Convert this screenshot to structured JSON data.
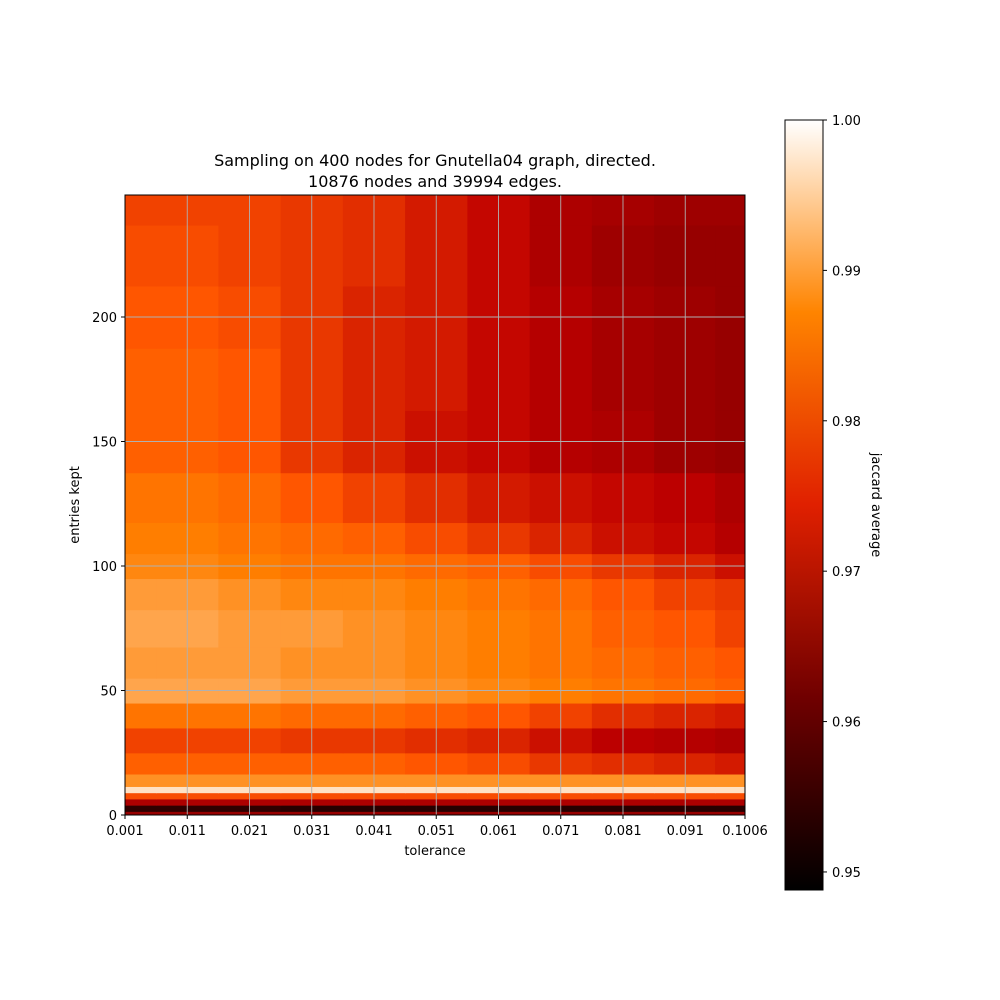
{
  "chart_data": {
    "type": "heatmap",
    "title": "Sampling on 400 nodes for Gnutella04 graph, directed.",
    "subtitle": "10876 nodes and 39994 edges.",
    "xlabel": "tolerance",
    "ylabel": "entries kept",
    "xlim": [
      0.001,
      0.1006
    ],
    "ylim": [
      0,
      249
    ],
    "x_ticks": [
      "0.001",
      "0.011",
      "0.021",
      "0.031",
      "0.041",
      "0.051",
      "0.061",
      "0.071",
      "0.081",
      "0.091",
      "0.1006"
    ],
    "y_ticks": [
      "0",
      "50",
      "100",
      "150",
      "200"
    ],
    "grid": true,
    "colormap": "gist_heat",
    "colorbar": {
      "label": "jaccard average",
      "range": [
        0.9488,
        1.0
      ],
      "ticks": [
        "0.95",
        "0.96",
        "0.97",
        "0.98",
        "0.99",
        "1.00"
      ]
    },
    "x": [
      0.001,
      0.011,
      0.021,
      0.031,
      0.041,
      0.051,
      0.061,
      0.071,
      0.081,
      0.091,
      0.1006
    ],
    "y": [
      0,
      3,
      5,
      8,
      10,
      13,
      20,
      30,
      40,
      50,
      60,
      75,
      90,
      100,
      110,
      125,
      150,
      175,
      200,
      225,
      249
    ],
    "z": [
      [
        0.969,
        0.969,
        0.969,
        0.969,
        0.969,
        0.969,
        0.969,
        0.969,
        0.969,
        0.969,
        0.969
      ],
      [
        0.955,
        0.955,
        0.955,
        0.954,
        0.954,
        0.954,
        0.954,
        0.954,
        0.954,
        0.954,
        0.954
      ],
      [
        0.972,
        0.972,
        0.972,
        0.972,
        0.972,
        0.972,
        0.972,
        0.972,
        0.972,
        0.972,
        0.972
      ],
      [
        0.982,
        0.982,
        0.982,
        0.982,
        0.982,
        0.982,
        0.982,
        0.982,
        0.982,
        0.982,
        0.982
      ],
      [
        0.997,
        0.997,
        0.997,
        0.997,
        0.997,
        0.997,
        0.997,
        0.997,
        0.997,
        0.997,
        0.997
      ],
      [
        0.989,
        0.989,
        0.989,
        0.989,
        0.989,
        0.989,
        0.989,
        0.989,
        0.989,
        0.989,
        0.989
      ],
      [
        0.984,
        0.984,
        0.984,
        0.984,
        0.984,
        0.983,
        0.982,
        0.98,
        0.979,
        0.978,
        0.977
      ],
      [
        0.981,
        0.981,
        0.981,
        0.98,
        0.98,
        0.979,
        0.978,
        0.976,
        0.974,
        0.973,
        0.972
      ],
      [
        0.986,
        0.986,
        0.986,
        0.985,
        0.985,
        0.984,
        0.983,
        0.981,
        0.979,
        0.978,
        0.977
      ],
      [
        0.991,
        0.991,
        0.991,
        0.99,
        0.99,
        0.989,
        0.988,
        0.987,
        0.986,
        0.985,
        0.984
      ],
      [
        0.99,
        0.99,
        0.99,
        0.989,
        0.989,
        0.988,
        0.987,
        0.986,
        0.985,
        0.984,
        0.983
      ],
      [
        0.991,
        0.991,
        0.99,
        0.99,
        0.989,
        0.988,
        0.987,
        0.986,
        0.984,
        0.983,
        0.981
      ],
      [
        0.99,
        0.99,
        0.989,
        0.988,
        0.988,
        0.987,
        0.986,
        0.985,
        0.983,
        0.981,
        0.98
      ],
      [
        0.988,
        0.988,
        0.987,
        0.986,
        0.986,
        0.985,
        0.984,
        0.982,
        0.98,
        0.978,
        0.976
      ],
      [
        0.987,
        0.987,
        0.986,
        0.985,
        0.984,
        0.982,
        0.98,
        0.978,
        0.976,
        0.975,
        0.973
      ],
      [
        0.986,
        0.986,
        0.985,
        0.983,
        0.981,
        0.979,
        0.977,
        0.976,
        0.975,
        0.974,
        0.972
      ],
      [
        0.984,
        0.984,
        0.983,
        0.98,
        0.978,
        0.976,
        0.975,
        0.973,
        0.972,
        0.97,
        0.969
      ],
      [
        0.984,
        0.984,
        0.983,
        0.98,
        0.978,
        0.977,
        0.975,
        0.973,
        0.971,
        0.97,
        0.969
      ],
      [
        0.983,
        0.983,
        0.982,
        0.98,
        0.978,
        0.977,
        0.975,
        0.973,
        0.971,
        0.97,
        0.969
      ],
      [
        0.982,
        0.982,
        0.981,
        0.98,
        0.979,
        0.977,
        0.975,
        0.972,
        0.97,
        0.969,
        0.969
      ],
      [
        0.981,
        0.981,
        0.981,
        0.98,
        0.979,
        0.977,
        0.975,
        0.972,
        0.971,
        0.97,
        0.97
      ]
    ]
  }
}
